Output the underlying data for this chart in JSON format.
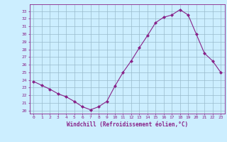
{
  "x": [
    0,
    1,
    2,
    3,
    4,
    5,
    6,
    7,
    8,
    9,
    10,
    11,
    12,
    13,
    14,
    15,
    16,
    17,
    18,
    19,
    20,
    21,
    22,
    23
  ],
  "y": [
    23.8,
    23.3,
    22.8,
    22.2,
    21.8,
    21.2,
    20.5,
    20.1,
    20.5,
    21.2,
    23.2,
    25.0,
    26.5,
    28.2,
    29.8,
    31.5,
    32.2,
    32.5,
    33.2,
    32.5,
    30.0,
    27.5,
    26.5,
    25.0
  ],
  "line_color": "#882288",
  "marker": "D",
  "marker_size": 2,
  "bg_color": "#cceeff",
  "grid_color": "#99bbcc",
  "xlabel": "Windchill (Refroidissement éolien,°C)",
  "ylabel_ticks": [
    20,
    21,
    22,
    23,
    24,
    25,
    26,
    27,
    28,
    29,
    30,
    31,
    32,
    33
  ],
  "ylim": [
    19.6,
    33.9
  ],
  "xlim": [
    -0.5,
    23.5
  ],
  "tick_color": "#882288",
  "label_color": "#882288",
  "spine_color": "#882288"
}
